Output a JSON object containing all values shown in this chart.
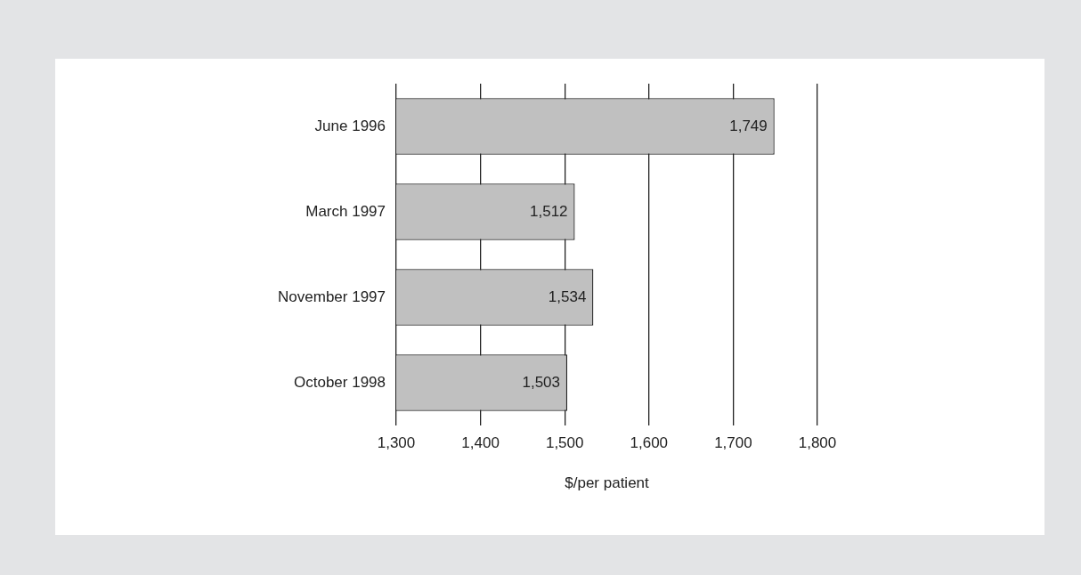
{
  "chart_data": {
    "type": "bar",
    "orientation": "horizontal",
    "xlabel": "$/per patient",
    "categories": [
      "June 1996",
      "March 1997",
      "November 1997",
      "October 1998"
    ],
    "values": [
      1749,
      1512,
      1534,
      1503
    ],
    "value_labels": [
      "1,749",
      "1,512",
      "1,534",
      "1,503"
    ],
    "color": "#c0c0c0",
    "xlim": [
      1300,
      1800
    ],
    "xticks": [
      {
        "value": 1300,
        "label": "1,300"
      },
      {
        "value": 1400,
        "label": "1,400"
      },
      {
        "value": 1500,
        "label": "1,500"
      },
      {
        "value": 1600,
        "label": "1,600"
      },
      {
        "value": 1700,
        "label": "1,700"
      },
      {
        "value": 1800,
        "label": "1,800"
      }
    ],
    "grid": "x",
    "legend": false
  }
}
